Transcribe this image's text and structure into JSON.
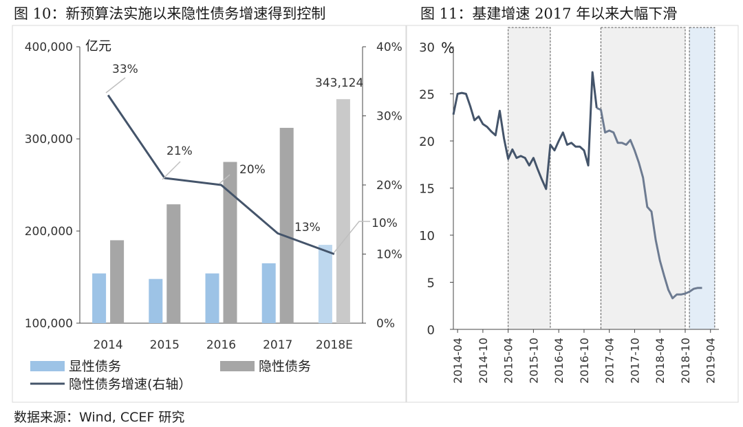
{
  "titles": {
    "left": "图 10：新预算法实施以来隐性债务增速得到控制",
    "right": "图 11：基建增速 2017 年以来大幅下滑"
  },
  "source": "数据来源：Wind, CCEF 研究",
  "colors": {
    "explicit": "#9dc3e6",
    "explicit_light": "#bdd7ee",
    "hidden": "#a6a6a6",
    "hidden_light": "#c9c9c9",
    "line": "#44546a",
    "shade_gray": "#f0f0f0",
    "shade_blue": "#e3edf7",
    "axis": "#444444"
  },
  "chart_data": [
    {
      "type": "bar",
      "title": "图 10：新预算法实施以来隐性债务增速得到控制",
      "categories": [
        "2014",
        "2015",
        "2016",
        "2017",
        "2018E"
      ],
      "ylabel": "亿元",
      "ylim": [
        100000,
        400000
      ],
      "yticks": [
        "100,000",
        "200,000",
        "300,000",
        "400,000"
      ],
      "y2lim": [
        0,
        40
      ],
      "y2ticks": [
        "0%",
        "10%",
        "20%",
        "30%",
        "40%"
      ],
      "series": [
        {
          "name": "显性债务",
          "values": [
            154000,
            148000,
            154000,
            165000,
            185000
          ]
        },
        {
          "name": "隐性债务",
          "values": [
            190000,
            229000,
            275000,
            312000,
            343124
          ]
        },
        {
          "name": "隐性债务增速(右轴）",
          "axis": "right",
          "values": [
            33,
            21,
            20,
            13,
            10
          ]
        }
      ],
      "annotations": [
        "33%",
        "21%",
        "20%",
        "13%",
        "10%",
        "343,124"
      ],
      "legend": "bottom"
    },
    {
      "type": "line",
      "title": "图 11：基建增速 2017 年以来大幅下滑",
      "ylabel": "%",
      "ylim": [
        0,
        30
      ],
      "yticks": [
        "0",
        "5",
        "10",
        "15",
        "20",
        "25",
        "30"
      ],
      "xticks": [
        "2014-04",
        "2014-10",
        "2015-04",
        "2015-10",
        "2016-04",
        "2016-10",
        "2017-04",
        "2017-10",
        "2018-04",
        "2018-10",
        "2019-04"
      ],
      "x_start": "2014-03",
      "shaded_periods": [
        {
          "from": "2015-04",
          "to": "2016-02",
          "style": "gray"
        },
        {
          "from": "2017-02",
          "to": "2018-10",
          "style": "gray"
        },
        {
          "from": "2018-11",
          "to": "2019-05",
          "style": "blue"
        }
      ],
      "series": [
        {
          "name": "基建增速",
          "values": [
            22.8,
            25.0,
            25.1,
            25.0,
            23.7,
            22.2,
            22.6,
            21.8,
            21.5,
            21.0,
            20.6,
            23.2,
            20.3,
            18.1,
            19.1,
            18.2,
            18.4,
            18.2,
            17.4,
            18.2,
            17.0,
            15.9,
            14.9,
            19.6,
            19.0,
            20.0,
            20.9,
            19.6,
            19.8,
            19.4,
            19.4,
            19.0,
            17.4,
            27.3,
            23.5,
            23.3,
            20.9,
            21.1,
            20.9,
            19.8,
            19.8,
            19.6,
            20.1,
            19.0,
            17.7,
            16.1,
            13.0,
            12.5,
            9.5,
            7.3,
            5.7,
            4.2,
            3.3,
            3.7,
            3.7,
            3.8,
            4.0,
            4.3,
            4.4,
            4.4
          ]
        }
      ]
    }
  ]
}
